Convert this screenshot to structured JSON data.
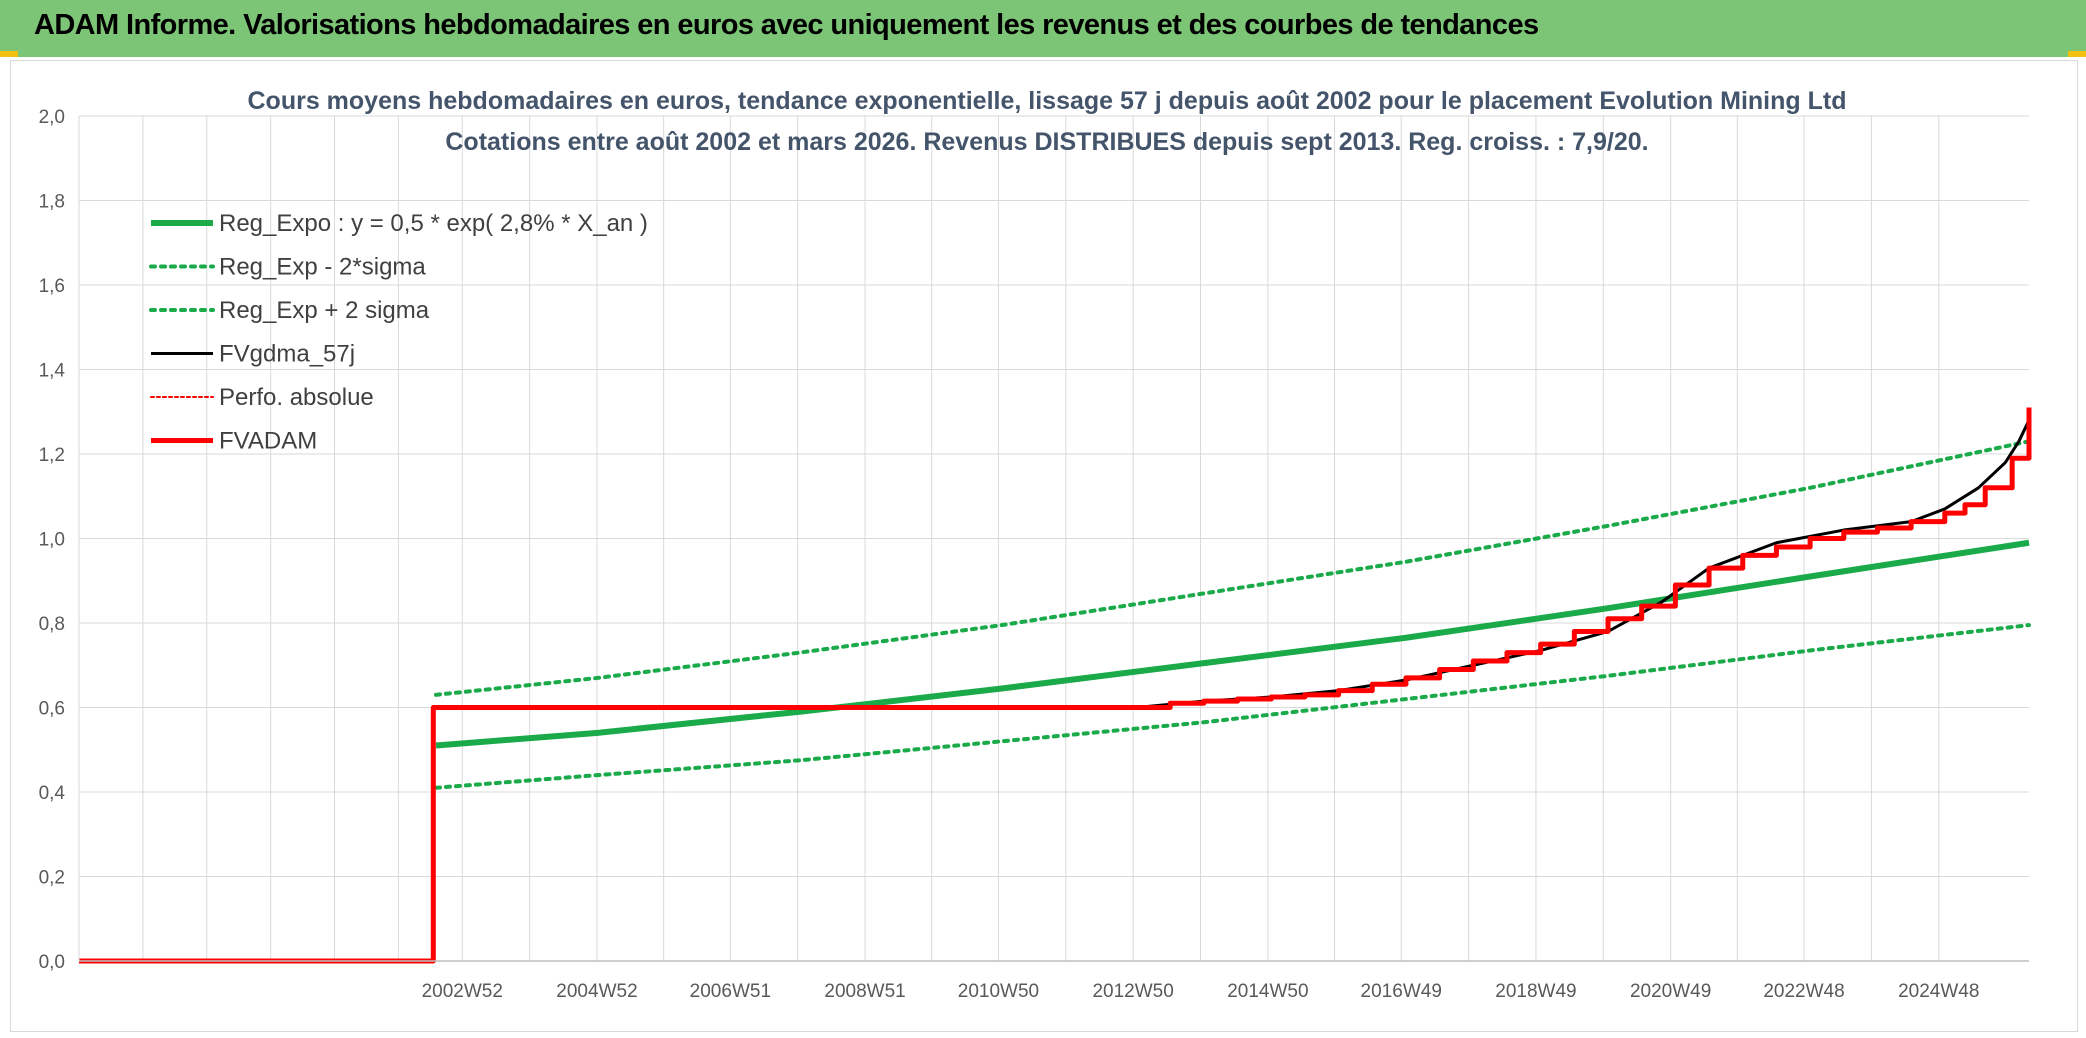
{
  "header": {
    "title": "ADAM Informe. Valorisations hebdomadaires en euros avec uniquement les revenus et des courbes de tendances"
  },
  "colors": {
    "banner": "#7cc576",
    "green": "#1aaa4a",
    "red": "#ff0000",
    "black": "#000000",
    "grid": "#d9d9d9"
  },
  "chart_data": {
    "type": "line",
    "title": "Cours moyens hebdomadaires en euros, tendance exponentielle, lissage 57 j depuis août 2002 pour le placement Evolution Mining Ltd",
    "subtitle": "Cotations entre août 2002 et mars 2026. Revenus DISTRIBUES depuis sept 2013. Reg. croiss. : 7,9/20.",
    "xlabel": "",
    "ylabel": "",
    "ylim": [
      0,
      2.0
    ],
    "xlim": [
      1997.3,
      2026.25
    ],
    "grid": true,
    "legend_position": "top-left",
    "y_ticks": [
      "0,0",
      "0,2",
      "0,4",
      "0,6",
      "0,8",
      "1,0",
      "1,2",
      "1,4",
      "1,6",
      "1,8",
      "2,0"
    ],
    "x_ticks": [
      {
        "label": "2002W52",
        "x": 2002.99
      },
      {
        "label": "2004W52",
        "x": 2004.99
      },
      {
        "label": "2006W51",
        "x": 2006.97
      },
      {
        "label": "2008W51",
        "x": 2008.97
      },
      {
        "label": "2010W50",
        "x": 2010.95
      },
      {
        "label": "2012W50",
        "x": 2012.95
      },
      {
        "label": "2014W50",
        "x": 2014.95
      },
      {
        "label": "2016W49",
        "x": 2016.93
      },
      {
        "label": "2018W49",
        "x": 2018.93
      },
      {
        "label": "2020W49",
        "x": 2020.93
      },
      {
        "label": "2022W48",
        "x": 2022.91
      },
      {
        "label": "2024W48",
        "x": 2024.91
      }
    ],
    "series": [
      {
        "name": "Reg_Expo : y = 0,5 * exp( 2,8% *  X_an )",
        "color": "#1aaa4a",
        "style": "solid",
        "width": 6,
        "x": [
          2002.6,
          2005,
          2008,
          2011,
          2014,
          2017,
          2020,
          2023,
          2026.25
        ],
        "y": [
          0.51,
          0.54,
          0.59,
          0.645,
          0.705,
          0.765,
          0.835,
          0.91,
          0.99
        ]
      },
      {
        "name": "Reg_Exp - 2*sigma",
        "color": "#1aaa4a",
        "style": "dotted",
        "width": 4,
        "x": [
          2002.6,
          2005,
          2008,
          2011,
          2014,
          2017,
          2020,
          2023,
          2026.25
        ],
        "y": [
          0.41,
          0.44,
          0.475,
          0.52,
          0.565,
          0.62,
          0.675,
          0.735,
          0.795
        ]
      },
      {
        "name": "Reg_Exp + 2 sigma",
        "color": "#1aaa4a",
        "style": "dotted",
        "width": 4,
        "x": [
          2002.6,
          2005,
          2008,
          2011,
          2014,
          2017,
          2020,
          2023,
          2026.25
        ],
        "y": [
          0.63,
          0.67,
          0.73,
          0.795,
          0.87,
          0.945,
          1.03,
          1.12,
          1.23
        ]
      },
      {
        "name": "FVgdma_57j",
        "color": "#000000",
        "style": "solid",
        "width": 3,
        "x": [
          1997.3,
          2002.55,
          2002.56,
          2013.0,
          2014.0,
          2015.0,
          2016.0,
          2017.0,
          2018.0,
          2019.0,
          2020.0,
          2020.8,
          2021.5,
          2022.5,
          2023.5,
          2024.5,
          2025.0,
          2025.5,
          2025.9,
          2026.1,
          2026.25
        ],
        "y": [
          0,
          0,
          0.6,
          0.6,
          0.615,
          0.625,
          0.64,
          0.665,
          0.7,
          0.735,
          0.78,
          0.85,
          0.93,
          0.99,
          1.02,
          1.04,
          1.07,
          1.12,
          1.18,
          1.23,
          1.28
        ]
      },
      {
        "name": "Perfo. absolue",
        "color": "#ff0000",
        "style": "dotted",
        "width": 2,
        "x": [],
        "y": []
      },
      {
        "name": "FVADAM",
        "color": "#ff0000",
        "style": "step",
        "width": 5,
        "x": [
          1997.3,
          2002.55,
          2002.56,
          2013.0,
          2013.5,
          2014.0,
          2014.5,
          2015.0,
          2015.5,
          2016.0,
          2016.5,
          2017.0,
          2017.5,
          2018.0,
          2018.5,
          2019.0,
          2019.5,
          2020.0,
          2020.5,
          2021.0,
          2021.5,
          2022.0,
          2022.5,
          2023.0,
          2023.5,
          2024.0,
          2024.5,
          2025.0,
          2025.3,
          2025.6,
          2026.0,
          2026.25
        ],
        "y": [
          0,
          0,
          0.6,
          0.6,
          0.61,
          0.615,
          0.62,
          0.625,
          0.63,
          0.64,
          0.655,
          0.67,
          0.69,
          0.71,
          0.73,
          0.75,
          0.78,
          0.81,
          0.84,
          0.89,
          0.93,
          0.96,
          0.98,
          1.0,
          1.015,
          1.025,
          1.04,
          1.06,
          1.08,
          1.12,
          1.19,
          1.31
        ]
      }
    ]
  }
}
